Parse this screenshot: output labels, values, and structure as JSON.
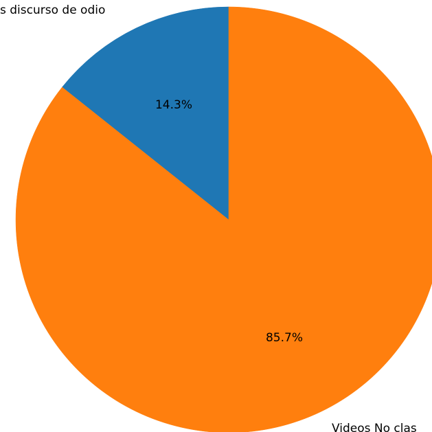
{
  "chart_data": {
    "type": "pie",
    "slices": [
      {
        "label": "s discurso de odio",
        "value": 14.3,
        "pct_label": "14.3%",
        "color": "#1f77b4"
      },
      {
        "label": "Videos No clas",
        "value": 85.7,
        "pct_label": "85.7%",
        "color": "#ff7f0e"
      }
    ],
    "start_angle_deg": 90,
    "direction": "counterclockwise"
  }
}
